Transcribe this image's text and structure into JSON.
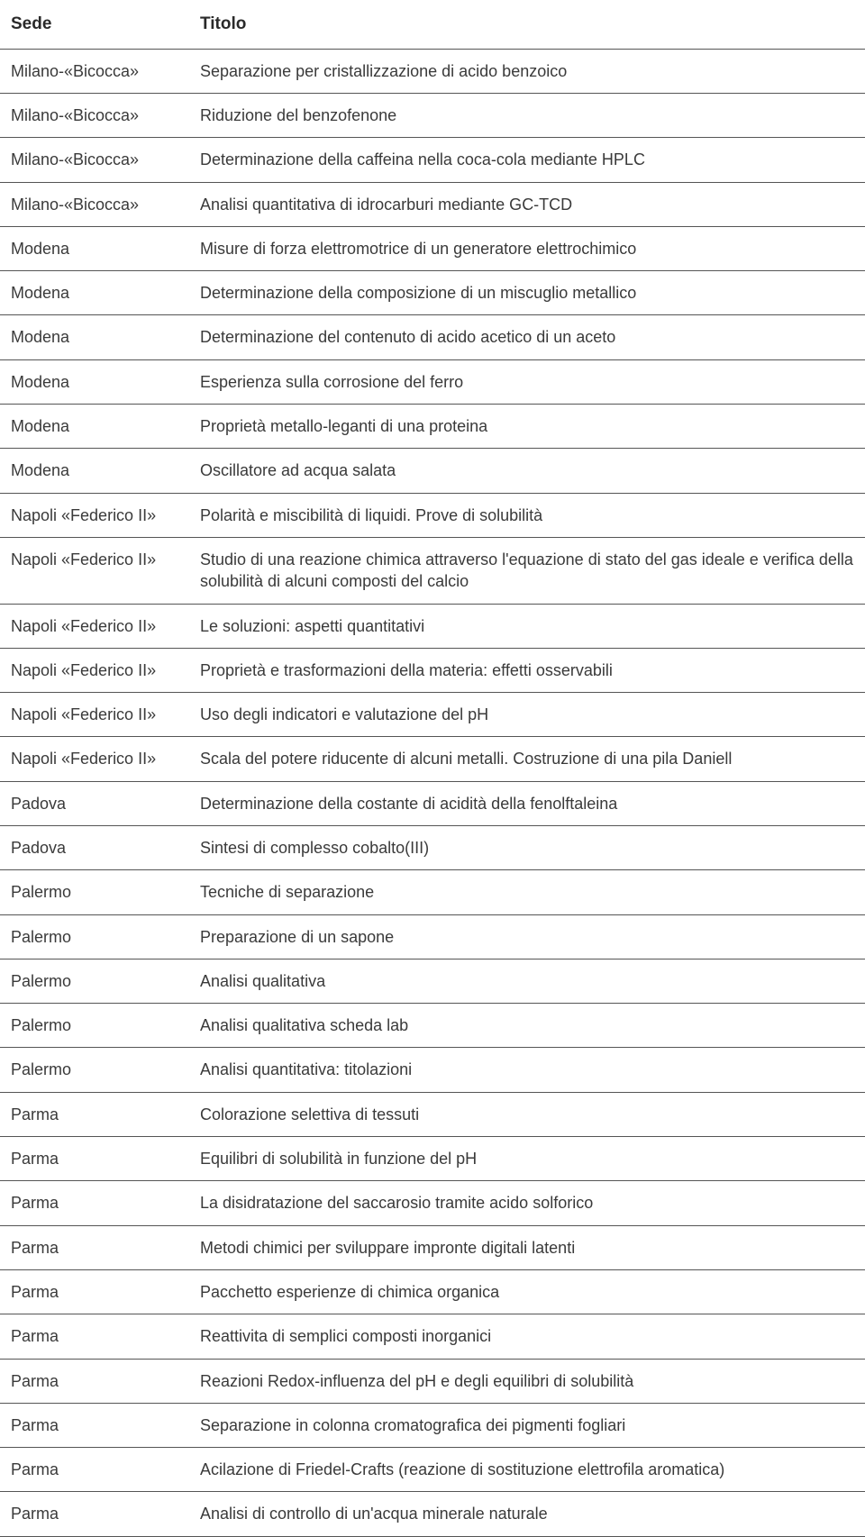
{
  "headers": {
    "sede": "Sede",
    "titolo": "Titolo"
  },
  "rows": [
    {
      "sede": "Milano-«Bicocca»",
      "titolo": "Separazione per cristallizzazione di acido benzoico"
    },
    {
      "sede": "Milano-«Bicocca»",
      "titolo": "Riduzione del benzofenone"
    },
    {
      "sede": "Milano-«Bicocca»",
      "titolo": "Determinazione della caffeina nella coca-cola mediante HPLC"
    },
    {
      "sede": "Milano-«Bicocca»",
      "titolo": "Analisi quantitativa di idrocarburi mediante GC-TCD"
    },
    {
      "sede": "Modena",
      "titolo": "Misure di forza elettromotrice di un generatore elettrochimico"
    },
    {
      "sede": "Modena",
      "titolo": "Determinazione della composizione di un miscuglio metallico"
    },
    {
      "sede": "Modena",
      "titolo": "Determinazione del contenuto di acido acetico di un aceto"
    },
    {
      "sede": "Modena",
      "titolo": "Esperienza sulla corrosione del ferro"
    },
    {
      "sede": "Modena",
      "titolo": "Proprietà metallo-leganti di una proteina"
    },
    {
      "sede": "Modena",
      "titolo": "Oscillatore ad acqua salata"
    },
    {
      "sede": "Napoli «Federico II»",
      "titolo": "Polarità e miscibilità di liquidi. Prove di solubilità"
    },
    {
      "sede": "Napoli «Federico II»",
      "titolo": "Studio di una reazione chimica attraverso l'equazione di stato del gas ideale e verifica della solubilità di alcuni composti del calcio"
    },
    {
      "sede": "Napoli «Federico II»",
      "titolo": "Le soluzioni: aspetti quantitativi"
    },
    {
      "sede": "Napoli «Federico II»",
      "titolo": "Proprietà e trasformazioni della materia: effetti osservabili"
    },
    {
      "sede": "Napoli «Federico II»",
      "titolo": "Uso degli indicatori e valutazione del pH"
    },
    {
      "sede": "Napoli «Federico II»",
      "titolo": "Scala del potere riducente di alcuni metalli. Costruzione di una pila Daniell"
    },
    {
      "sede": "Padova",
      "titolo": "Determinazione della costante di acidità della fenolftaleina"
    },
    {
      "sede": "Padova",
      "titolo": "Sintesi di complesso cobalto(III)"
    },
    {
      "sede": "Palermo",
      "titolo": "Tecniche di separazione"
    },
    {
      "sede": "Palermo",
      "titolo": "Preparazione di un sapone"
    },
    {
      "sede": "Palermo",
      "titolo": "Analisi qualitativa"
    },
    {
      "sede": "Palermo",
      "titolo": "Analisi qualitativa scheda lab"
    },
    {
      "sede": "Palermo",
      "titolo": "Analisi quantitativa: titolazioni"
    },
    {
      "sede": "Parma",
      "titolo": "Colorazione selettiva di tessuti"
    },
    {
      "sede": "Parma",
      "titolo": "Equilibri di solubilità in funzione del pH"
    },
    {
      "sede": "Parma",
      "titolo": "La disidratazione del saccarosio tramite acido solforico"
    },
    {
      "sede": "Parma",
      "titolo": "Metodi chimici per sviluppare impronte digitali latenti"
    },
    {
      "sede": "Parma",
      "titolo": "Pacchetto esperienze di chimica organica"
    },
    {
      "sede": "Parma",
      "titolo": "Reattivita di semplici composti inorganici"
    },
    {
      "sede": "Parma",
      "titolo": "Reazioni Redox-influenza del pH e degli equilibri di solubilità"
    },
    {
      "sede": "Parma",
      "titolo": "Separazione in colonna cromatografica dei pigmenti fogliari"
    },
    {
      "sede": "Parma",
      "titolo": "Acilazione di Friedel-Crafts (reazione di sostituzione elettrofila aromatica)"
    },
    {
      "sede": "Parma",
      "titolo": "Analisi di controllo di un'acqua minerale naturale"
    }
  ]
}
